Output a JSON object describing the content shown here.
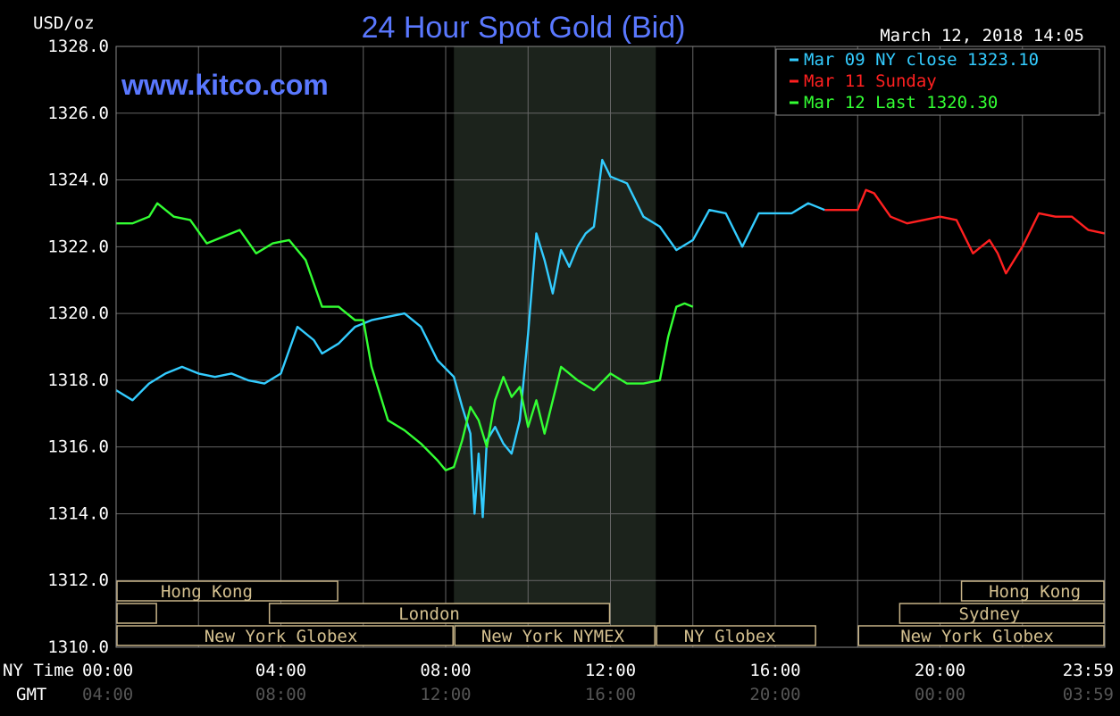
{
  "chart_data": {
    "type": "line",
    "title": "24 Hour Spot Gold (Bid)",
    "watermark": "www.kitco.com",
    "timestamp": "March 12, 2018 14:05",
    "ylabel": "USD/oz",
    "ylim": [
      1310,
      1328
    ],
    "y_ticks": [
      "1310.0",
      "1312.0",
      "1314.0",
      "1316.0",
      "1318.0",
      "1320.0",
      "1322.0",
      "1324.0",
      "1326.0",
      "1328.0"
    ],
    "x_axis": {
      "row_labels": [
        "NY Time",
        "GMT"
      ],
      "ny_ticks": [
        "00:00",
        "04:00",
        "08:00",
        "12:00",
        "16:00",
        "20:00",
        "23:59"
      ],
      "gmt_ticks": [
        "04:00",
        "08:00",
        "12:00",
        "16:00",
        "20:00",
        "00:00",
        "03:59"
      ],
      "range_hours": [
        0,
        24
      ],
      "grid": true
    },
    "legend": {
      "placement": "top-right",
      "entries": [
        {
          "label": "Mar 09 NY close 1323.10",
          "color": "#33ccff"
        },
        {
          "label": "Mar 11 Sunday",
          "color": "#ff2020"
        },
        {
          "label": "Mar 12 Last 1320.30",
          "color": "#33ff33"
        }
      ]
    },
    "shaded_region_hours": [
      8.2,
      13.1
    ],
    "series": [
      {
        "name": "Mar 09 NY close 1323.10",
        "color": "#33ccff",
        "x": [
          0,
          0.4,
          0.8,
          1.2,
          1.6,
          2.0,
          2.4,
          2.8,
          3.2,
          3.6,
          4.0,
          4.4,
          4.8,
          5.0,
          5.4,
          5.8,
          6.2,
          6.6,
          7.0,
          7.4,
          7.8,
          8.2,
          8.4,
          8.6,
          8.7,
          8.8,
          8.9,
          9.0,
          9.2,
          9.4,
          9.6,
          9.8,
          10.0,
          10.2,
          10.4,
          10.6,
          10.8,
          11.0,
          11.2,
          11.4,
          11.6,
          11.8,
          12.0,
          12.4,
          12.8,
          13.2,
          13.6,
          14.0,
          14.4,
          14.8,
          15.2,
          15.6,
          16.0,
          16.4,
          16.8,
          17.2
        ],
        "y": [
          1317.7,
          1317.4,
          1317.9,
          1318.2,
          1318.4,
          1318.2,
          1318.1,
          1318.2,
          1318.0,
          1317.9,
          1318.2,
          1319.6,
          1319.2,
          1318.8,
          1319.1,
          1319.6,
          1319.8,
          1319.9,
          1320.0,
          1319.6,
          1318.6,
          1318.1,
          1317.2,
          1316.4,
          1314.0,
          1315.8,
          1313.9,
          1316.2,
          1316.6,
          1316.1,
          1315.8,
          1316.8,
          1319.4,
          1322.4,
          1321.6,
          1320.6,
          1321.9,
          1321.4,
          1322.0,
          1322.4,
          1322.6,
          1324.6,
          1324.1,
          1323.9,
          1322.9,
          1322.6,
          1321.9,
          1322.2,
          1323.1,
          1323.0,
          1322.0,
          1323.0,
          1323.0,
          1323.0,
          1323.3,
          1323.1
        ]
      },
      {
        "name": "Mar 11 Sunday",
        "color": "#ff2020",
        "x": [
          17.2,
          17.6,
          18.0,
          18.2,
          18.4,
          18.8,
          19.2,
          19.6,
          20.0,
          20.4,
          20.8,
          21.0,
          21.2,
          21.4,
          21.6,
          21.8,
          22.0,
          22.4,
          22.8,
          23.2,
          23.6,
          23.99
        ],
        "y": [
          1323.1,
          1323.1,
          1323.1,
          1323.7,
          1323.6,
          1322.9,
          1322.7,
          1322.8,
          1322.9,
          1322.8,
          1321.8,
          1322.0,
          1322.2,
          1321.8,
          1321.2,
          1321.6,
          1322.0,
          1323.0,
          1322.9,
          1322.9,
          1322.5,
          1322.4
        ]
      },
      {
        "name": "Mar 12 Last 1320.30",
        "color": "#33ff33",
        "x": [
          0,
          0.4,
          0.8,
          1.0,
          1.4,
          1.8,
          2.2,
          2.6,
          3.0,
          3.4,
          3.8,
          4.2,
          4.6,
          5.0,
          5.4,
          5.8,
          6.0,
          6.2,
          6.6,
          7.0,
          7.4,
          7.8,
          8.0,
          8.2,
          8.4,
          8.6,
          8.8,
          9.0,
          9.2,
          9.4,
          9.6,
          9.8,
          10.0,
          10.2,
          10.4,
          10.8,
          11.2,
          11.6,
          12.0,
          12.4,
          12.8,
          13.2,
          13.4,
          13.6,
          13.8,
          14.0
        ],
        "y": [
          1322.7,
          1322.7,
          1322.9,
          1323.3,
          1322.9,
          1322.8,
          1322.1,
          1322.3,
          1322.5,
          1321.8,
          1322.1,
          1322.2,
          1321.6,
          1320.2,
          1320.2,
          1319.8,
          1319.8,
          1318.4,
          1316.8,
          1316.5,
          1316.1,
          1315.6,
          1315.3,
          1315.4,
          1316.2,
          1317.2,
          1316.8,
          1316.0,
          1317.4,
          1318.1,
          1317.5,
          1317.8,
          1316.6,
          1317.4,
          1316.4,
          1318.4,
          1318.0,
          1317.7,
          1318.2,
          1317.9,
          1317.9,
          1318.0,
          1319.3,
          1320.2,
          1320.3,
          1320.2
        ]
      }
    ],
    "sessions": [
      {
        "label": "Hong Kong",
        "row": 0,
        "start": 0,
        "end": 5.4,
        "label_at": 2.2
      },
      {
        "label": "",
        "row": 1,
        "start": 0,
        "end": 1.0
      },
      {
        "label": "London",
        "row": 1,
        "start": 3.7,
        "end": 12.0,
        "label_at": 7.6
      },
      {
        "label": "New York Globex",
        "row": 2,
        "start": 0,
        "end": 8.2,
        "label_at": 4.0
      },
      {
        "label": "New York NYMEX",
        "row": 2,
        "start": 8.2,
        "end": 13.1,
        "label_at": 10.6
      },
      {
        "label": "NY Globex",
        "row": 2,
        "start": 13.1,
        "end": 17.0,
        "label_at": 14.9
      },
      {
        "label": "Hong Kong",
        "row": 0,
        "start": 20.5,
        "end": 24.0,
        "label_at": 22.3
      },
      {
        "label": "Sydney",
        "row": 1,
        "start": 19.0,
        "end": 24.0,
        "label_at": 21.2
      },
      {
        "label": "New York Globex",
        "row": 2,
        "start": 18.0,
        "end": 24.0,
        "label_at": 20.9
      }
    ]
  }
}
